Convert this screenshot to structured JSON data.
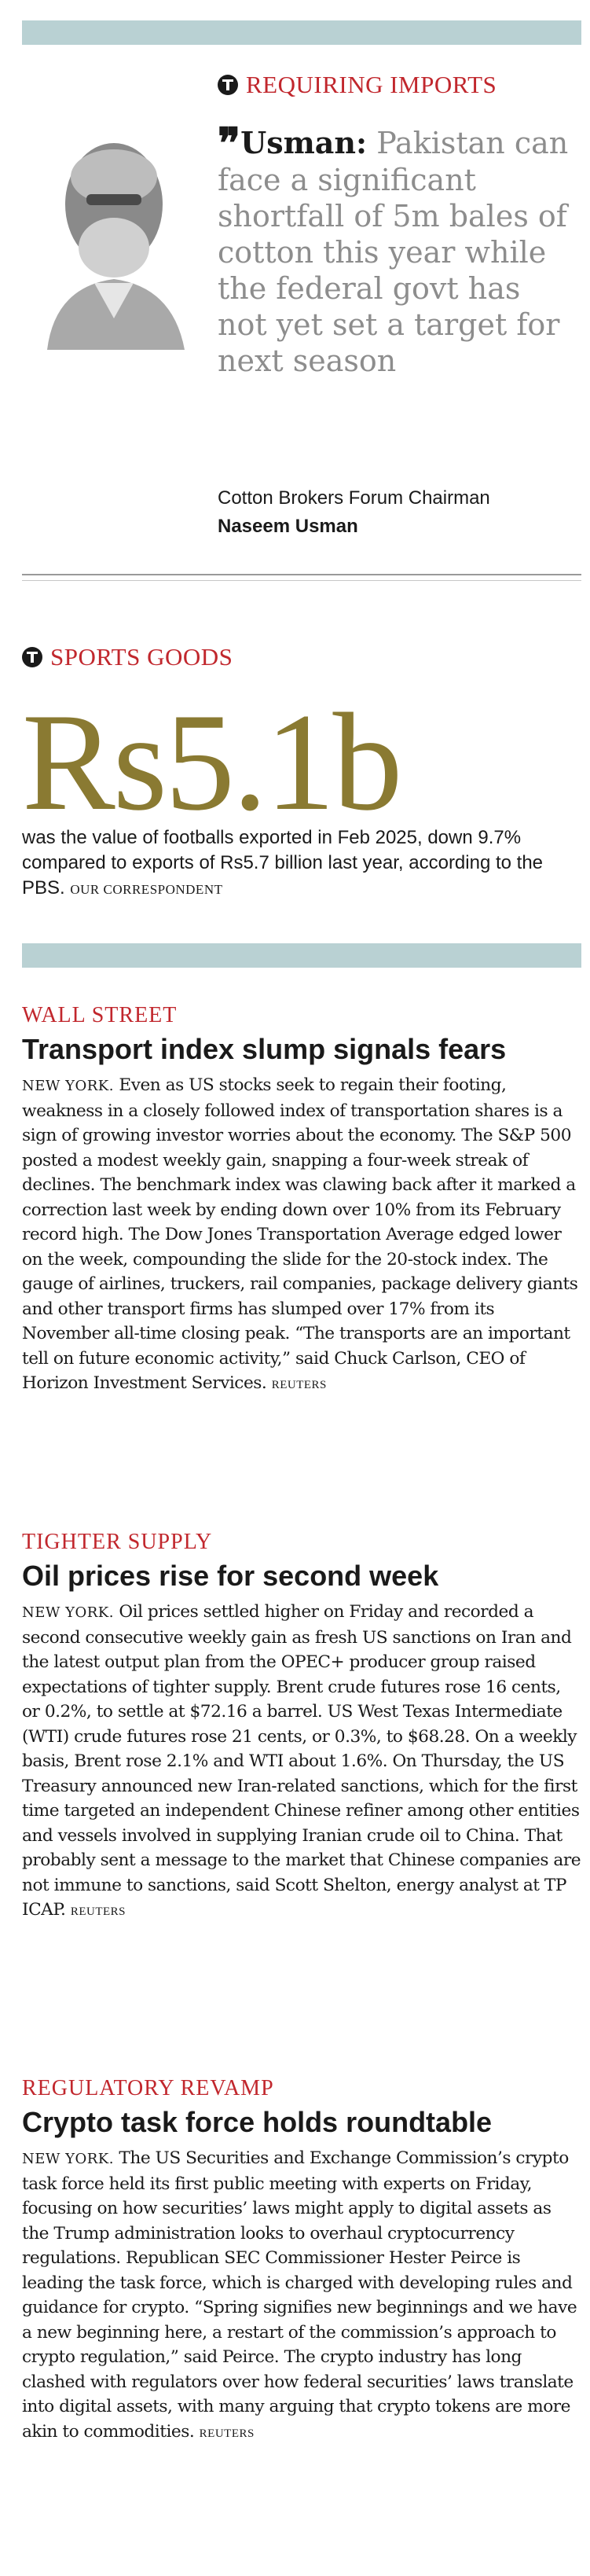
{
  "quote_section": {
    "kicker": "REQUIRING IMPORTS",
    "speaker": "Usman:",
    "quote": "Pakistan can face a significant shortfall of 5m bales of cotton this year while the federal govt has not yet set a target for next season",
    "role": "Cotton Brokers Forum Chairman",
    "name": "Naseem Usman"
  },
  "figure_section": {
    "kicker": "SPORTS GOODS",
    "figure": "Rs5.1b",
    "text": "was the value of footballs exported in Feb 2025, down 9.7% compared to exports of Rs5.7 billion last year, according to the PBS.",
    "credit": "OUR CORRESPONDENT"
  },
  "stories": [
    {
      "label": "WALL STREET",
      "headline": "Transport index slump signals fears",
      "dateline": "NEW YORK.",
      "body": "Even as US stocks seek to regain their footing, weakness in a closely followed index of transportation shares is a sign of growing investor worries about the economy. The S&P 500 posted a modest weekly gain, snapping a four-week streak of declines. The benchmark index was clawing back after it marked a correction last week by ending down over 10% from its February record high. The Dow Jones Transportation Average edged lower on the week, compounding the slide for the 20-stock index. The gauge of airlines, truckers, rail companies, package delivery giants and other transport firms has slumped over 17% from its November all-time closing peak. “The transports are an important tell on future economic activity,” said Chuck Carlson, CEO of Horizon Investment Services.",
      "credit": "REUTERS"
    },
    {
      "label": "TIGHTER SUPPLY",
      "headline": "Oil prices rise for second week",
      "dateline": "NEW YORK.",
      "body": "Oil prices settled higher on Friday and recorded a second consecutive weekly gain as fresh US sanctions on Iran and the latest output plan from the OPEC+ producer group raised expectations of tighter supply. Brent crude futures rose 16 cents, or 0.2%, to settle at $72.16 a barrel. US West Texas Intermediate (WTI) crude futures rose 21 cents, or 0.3%, to $68.28. On a weekly basis, Brent rose 2.1% and WTI about 1.6%. On Thursday, the US Treasury announced new Iran-related sanctions, which for the first time targeted an independent Chinese refiner among other entities and vessels involved in supplying Iranian crude oil to China. That probably sent a message to the market that Chinese companies are not immune to sanctions, said Scott Shelton, energy analyst at TP ICAP.",
      "credit": "REUTERS"
    },
    {
      "label": "REGULATORY REVAMP",
      "headline": "Crypto task force holds roundtable",
      "dateline": "NEW YORK.",
      "body": "The US Securities and Exchange Commission’s crypto task force held its first public meeting with experts on Friday, focusing on how securities’ laws might apply to digital assets as the Trump administration looks to overhaul cryptocurrency regulations. Republican SEC Commissioner Hester Peirce is leading the task force, which is charged with developing rules and guidance for crypto. “Spring signifies new beginnings and we have a new beginning here, a restart of the commission’s approach to crypto regulation,” said Peirce. The crypto industry has long clashed with regulators over how federal securities’ laws translate into digital assets, with many arguing that crypto tokens are more akin to commodities.",
      "credit": "REUTERS"
    }
  ]
}
